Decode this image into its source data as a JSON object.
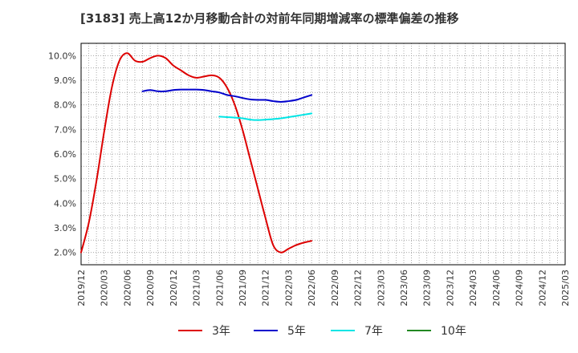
{
  "chart_data": {
    "type": "line",
    "title": "[3183]  売上高12か月移動合計の対前年同期増減率の標準偏差の推移",
    "xlabel": "",
    "ylabel": "",
    "ylim": [
      1.5,
      10.5
    ],
    "y_ticks": [
      "2.0%",
      "3.0%",
      "4.0%",
      "5.0%",
      "6.0%",
      "7.0%",
      "8.0%",
      "9.0%",
      "10.0%"
    ],
    "y_tick_values": [
      2,
      3,
      4,
      5,
      6,
      7,
      8,
      9,
      10
    ],
    "x_ticks": [
      "2019/12",
      "2020/03",
      "2020/06",
      "2020/09",
      "2020/12",
      "2021/03",
      "2021/06",
      "2021/09",
      "2021/12",
      "2022/03",
      "2022/06",
      "2022/09",
      "2022/12",
      "2023/03",
      "2023/06",
      "2023/09",
      "2023/12",
      "2024/03",
      "2024/06",
      "2024/09",
      "2024/12",
      "2025/03"
    ],
    "grid": true,
    "legend_position": "bottom",
    "series": [
      {
        "name": "3年",
        "color": "#dd0000",
        "points": [
          [
            0,
            2.0
          ],
          [
            1,
            3.2
          ],
          [
            2,
            4.9
          ],
          [
            3,
            6.9
          ],
          [
            4,
            8.7
          ],
          [
            5,
            9.8
          ],
          [
            6,
            10.1
          ],
          [
            7,
            9.8
          ],
          [
            8,
            9.75
          ],
          [
            9,
            9.9
          ],
          [
            10,
            10.0
          ],
          [
            11,
            9.9
          ],
          [
            12,
            9.6
          ],
          [
            13,
            9.4
          ],
          [
            14,
            9.2
          ],
          [
            15,
            9.1
          ],
          [
            16,
            9.15
          ],
          [
            17,
            9.2
          ],
          [
            18,
            9.1
          ],
          [
            19,
            8.7
          ],
          [
            20,
            8.0
          ],
          [
            21,
            7.0
          ],
          [
            22,
            5.8
          ],
          [
            23,
            4.6
          ],
          [
            24,
            3.4
          ],
          [
            25,
            2.3
          ],
          [
            26,
            2.0
          ],
          [
            27,
            2.15
          ],
          [
            28,
            2.3
          ],
          [
            29,
            2.4
          ],
          [
            30,
            2.47
          ]
        ]
      },
      {
        "name": "5年",
        "color": "#0000cc",
        "points": [
          [
            8,
            8.55
          ],
          [
            9,
            8.6
          ],
          [
            10,
            8.55
          ],
          [
            11,
            8.55
          ],
          [
            12,
            8.6
          ],
          [
            13,
            8.62
          ],
          [
            14,
            8.62
          ],
          [
            15,
            8.62
          ],
          [
            16,
            8.6
          ],
          [
            17,
            8.55
          ],
          [
            18,
            8.5
          ],
          [
            19,
            8.4
          ],
          [
            20,
            8.35
          ],
          [
            21,
            8.28
          ],
          [
            22,
            8.22
          ],
          [
            23,
            8.2
          ],
          [
            24,
            8.2
          ],
          [
            25,
            8.15
          ],
          [
            26,
            8.12
          ],
          [
            27,
            8.15
          ],
          [
            28,
            8.2
          ],
          [
            29,
            8.3
          ],
          [
            30,
            8.4
          ]
        ]
      },
      {
        "name": "7年",
        "color": "#00e5e5",
        "points": [
          [
            18,
            7.52
          ],
          [
            19,
            7.5
          ],
          [
            20,
            7.48
          ],
          [
            21,
            7.45
          ],
          [
            22,
            7.4
          ],
          [
            23,
            7.38
          ],
          [
            24,
            7.4
          ],
          [
            25,
            7.42
          ],
          [
            26,
            7.45
          ],
          [
            27,
            7.5
          ],
          [
            28,
            7.55
          ],
          [
            29,
            7.6
          ],
          [
            30,
            7.65
          ]
        ]
      },
      {
        "name": "10年",
        "color": "#228822",
        "points": []
      }
    ]
  }
}
